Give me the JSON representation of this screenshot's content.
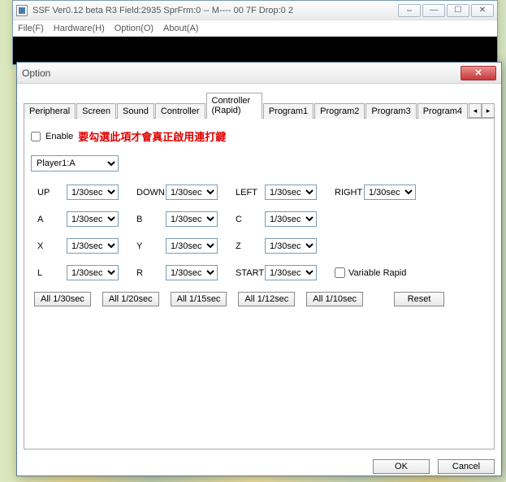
{
  "main_window": {
    "title": "SSF Ver0.12 beta R3  Field:2935  SprFrm:0  -- M----  00 7F  Drop:0 2",
    "menu": {
      "file": "File(F)",
      "hardware": "Hardware(H)",
      "option": "Option(O)",
      "about": "About(A)"
    }
  },
  "dialog": {
    "title": "Option",
    "tabs": [
      "Peripheral",
      "Screen",
      "Sound",
      "Controller",
      "Controller (Rapid)",
      "Program1",
      "Program2",
      "Program3",
      "Program4"
    ],
    "active_tab": 4,
    "enable_label": "Enable",
    "enable_checked": false,
    "warning_text": "要勾選此項才會真正啟用連打鍵",
    "player_options": [
      "Player1:A"
    ],
    "player_selected": "Player1:A",
    "rate_default": "1/30sec",
    "buttons": {
      "row1": [
        {
          "label": "UP"
        },
        {
          "label": "DOWN"
        },
        {
          "label": "LEFT"
        },
        {
          "label": "RIGHT"
        }
      ],
      "row2": [
        {
          "label": "A"
        },
        {
          "label": "B"
        },
        {
          "label": "C"
        }
      ],
      "row3": [
        {
          "label": "X"
        },
        {
          "label": "Y"
        },
        {
          "label": "Z"
        }
      ],
      "row4": [
        {
          "label": "L"
        },
        {
          "label": "R"
        },
        {
          "label": "START"
        }
      ]
    },
    "variable_rapid_label": "Variable Rapid",
    "variable_rapid_checked": false,
    "presets": [
      "All 1/30sec",
      "All 1/20sec",
      "All 1/15sec",
      "All 1/12sec",
      "All 1/10sec"
    ],
    "reset_label": "Reset",
    "ok_label": "OK",
    "cancel_label": "Cancel"
  },
  "colors": {
    "warning": "#e00000",
    "border": "#7a9db5"
  }
}
